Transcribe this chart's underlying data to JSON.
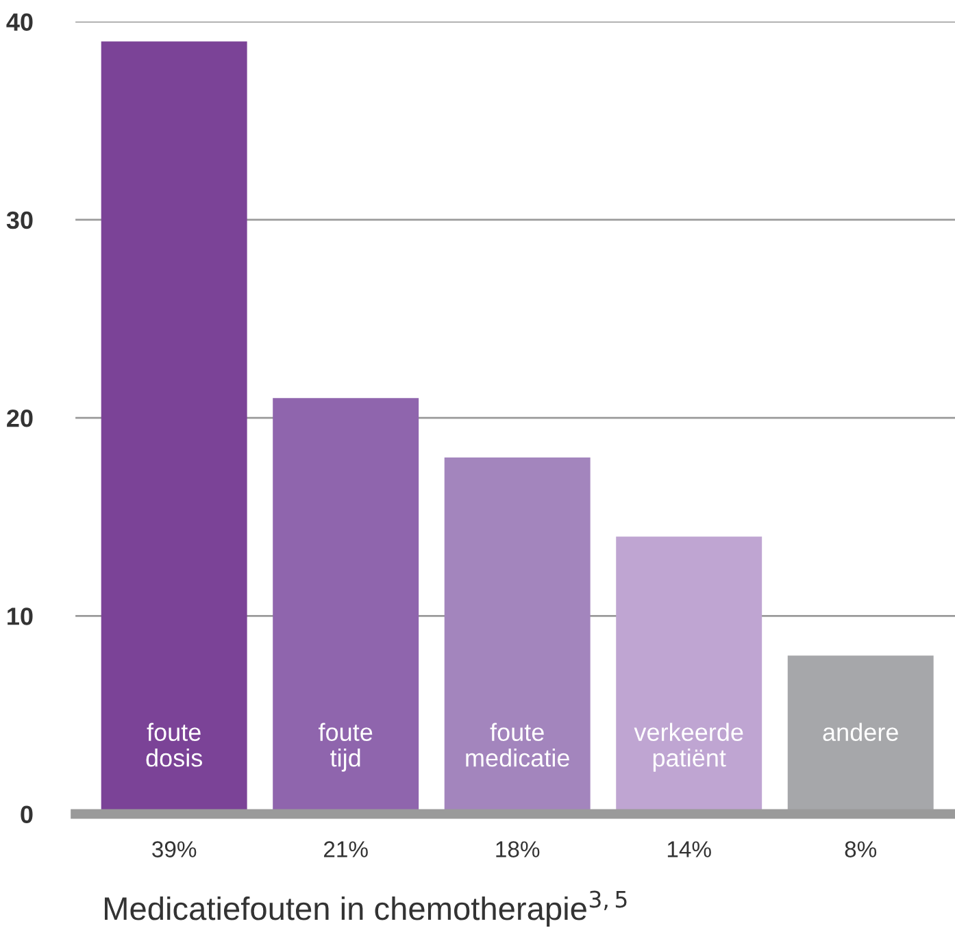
{
  "chart_data": {
    "type": "bar",
    "title": "Medicatiefouten in chemotherapie$^{3,5}$",
    "categories": [
      "foute\ndosis",
      "foute\ntijd",
      "foute\nmedicatie",
      "verkeerde\npatiënt",
      "andere"
    ],
    "values": [
      39,
      21,
      18,
      14,
      8
    ],
    "colors": [
      "#7b4397",
      "#8f65ad",
      "#a385bd",
      "#bfa5d2",
      "#a6a7aa"
    ],
    "value_labels": [
      "39%",
      "21%",
      "18%",
      "14%",
      "8%"
    ],
    "ylim": [
      0,
      40
    ],
    "yticks": [
      0,
      10,
      20,
      30,
      40
    ],
    "grid": "y",
    "legend": false
  }
}
